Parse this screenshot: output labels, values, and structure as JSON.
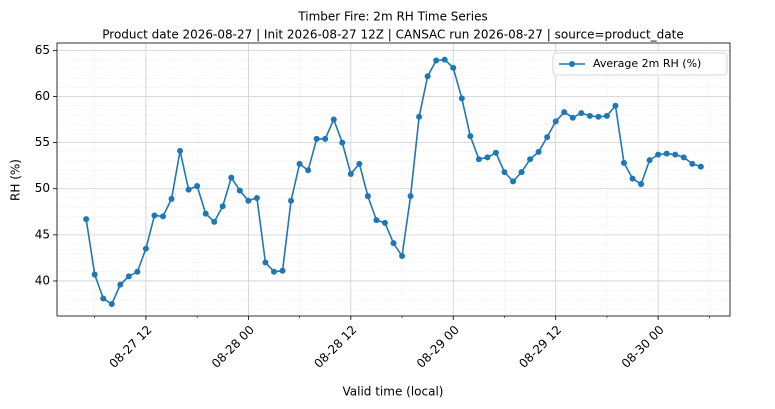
{
  "chart_data": {
    "type": "line",
    "title": "Timber Fire: 2m RH Time Series",
    "subtitle": "Product date 2026-08-27 | Init 2026-08-27 12Z | CANSAC run 2026-08-27 | source=product_date",
    "x_label": "Valid time (local)",
    "y_label": "RH (%)",
    "x": [
      "08-27 05",
      "08-27 06",
      "08-27 07",
      "08-27 08",
      "08-27 09",
      "08-27 10",
      "08-27 11",
      "08-27 12",
      "08-27 13",
      "08-27 14",
      "08-27 15",
      "08-27 16",
      "08-27 17",
      "08-27 18",
      "08-27 19",
      "08-27 20",
      "08-27 21",
      "08-27 22",
      "08-27 23",
      "08-28 00",
      "08-28 01",
      "08-28 02",
      "08-28 03",
      "08-28 04",
      "08-28 05",
      "08-28 06",
      "08-28 07",
      "08-28 08",
      "08-28 09",
      "08-28 10",
      "08-28 11",
      "08-28 12",
      "08-28 13",
      "08-28 14",
      "08-28 15",
      "08-28 16",
      "08-28 17",
      "08-28 18",
      "08-28 19",
      "08-28 20",
      "08-28 21",
      "08-28 22",
      "08-28 23",
      "08-29 00",
      "08-29 01",
      "08-29 02",
      "08-29 03",
      "08-29 04",
      "08-29 05",
      "08-29 06",
      "08-29 07",
      "08-29 08",
      "08-29 09",
      "08-29 10",
      "08-29 11",
      "08-29 12",
      "08-29 13",
      "08-29 14",
      "08-29 15",
      "08-29 16",
      "08-29 17",
      "08-29 18",
      "08-29 19",
      "08-29 20",
      "08-29 21",
      "08-29 22",
      "08-29 23",
      "08-30 00",
      "08-30 01",
      "08-30 02",
      "08-30 03",
      "08-30 04",
      "08-30 05"
    ],
    "series": [
      {
        "name": "Average 2m RH (%)",
        "color": "#1f77b4",
        "values": [
          46.7,
          40.7,
          38.1,
          37.5,
          39.6,
          40.5,
          41.0,
          43.5,
          47.1,
          47.0,
          48.9,
          54.1,
          49.9,
          50.3,
          47.3,
          46.4,
          48.1,
          51.2,
          49.8,
          48.7,
          49.0,
          42.0,
          41.0,
          41.1,
          48.7,
          52.7,
          52.0,
          55.4,
          55.4,
          57.5,
          55.0,
          51.6,
          52.7,
          49.2,
          46.6,
          46.3,
          44.1,
          42.7,
          49.2,
          57.8,
          62.2,
          63.9,
          64.0,
          63.1,
          59.8,
          55.7,
          53.2,
          53.4,
          53.9,
          51.8,
          50.8,
          51.8,
          53.2,
          54.0,
          55.6,
          57.3,
          58.3,
          57.7,
          58.2,
          57.9,
          57.8,
          57.9,
          59.0,
          52.8,
          51.1,
          50.5,
          53.1,
          53.7,
          53.8,
          53.7,
          53.4,
          52.7,
          52.4
        ]
      }
    ],
    "xlim": [
      "08-27 01:35",
      "08-30 08:25"
    ],
    "xticks": [
      "08-27 12",
      "08-28 00",
      "08-28 12",
      "08-29 00",
      "08-29 12",
      "08-30 00"
    ],
    "ylim": [
      36.2,
      65.8
    ],
    "yticks": [
      40,
      45,
      50,
      55,
      60,
      65
    ],
    "grid": true,
    "legend": "upper right"
  }
}
